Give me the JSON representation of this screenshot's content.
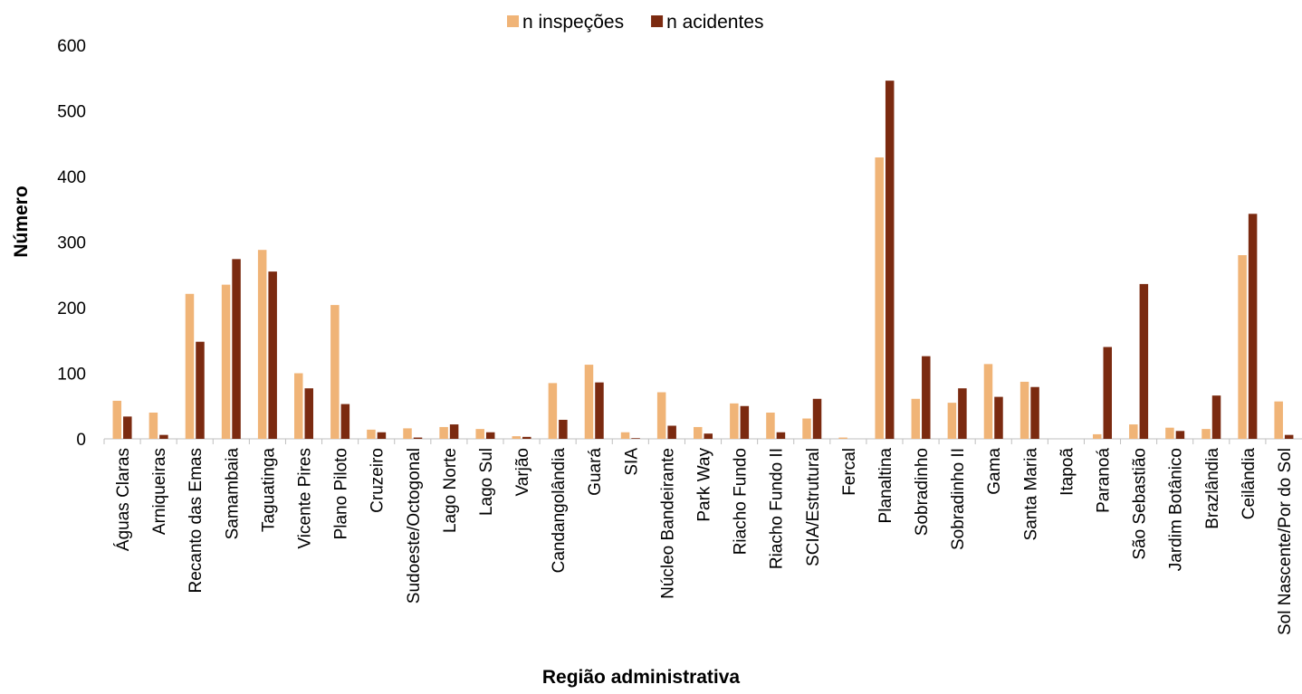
{
  "chart_data": {
    "type": "bar",
    "x_label": "Região administrativa",
    "y_label": "Número",
    "categories": [
      "Águas Claras",
      "Arniqueiras",
      "Recanto das Emas",
      "Samambaia",
      "Taguatinga",
      "Vicente Pires",
      "Plano Piloto",
      "Cruzeiro",
      "Sudoeste/Octogonal",
      "Lago Norte",
      "Lago Sul",
      "Varjão",
      "Candangolândia",
      "Guará",
      "SIA",
      "Núcleo Bandeirante",
      "Park Way",
      "Riacho Fundo",
      "Riacho Fundo II",
      "SCIA/Estrutural",
      "Fercal",
      "Planaltina",
      "Sobradinho",
      "Sobradinho II",
      "Gama",
      "Santa Maria",
      "Itapoã",
      "Paranoá",
      "São Sebastião",
      "Jardim Botânico",
      "Brazlândia",
      "Ceilândia",
      "Sol Nascente/Por do Sol"
    ],
    "series": [
      {
        "name": "n inspeções",
        "color": "#f0b477",
        "values": [
          58,
          40,
          221,
          235,
          288,
          100,
          204,
          14,
          16,
          18,
          15,
          4,
          85,
          113,
          10,
          71,
          18,
          54,
          40,
          31,
          2,
          429,
          61,
          55,
          114,
          87,
          0,
          7,
          22,
          17,
          15,
          280,
          57
        ]
      },
      {
        "name": "n acidentes",
        "color": "#7b2a10",
        "values": [
          34,
          6,
          148,
          274,
          255,
          77,
          53,
          10,
          2,
          22,
          10,
          3,
          29,
          86,
          1,
          20,
          8,
          50,
          10,
          61,
          0,
          546,
          126,
          77,
          64,
          79,
          0,
          140,
          236,
          12,
          66,
          343,
          6
        ]
      }
    ],
    "ylim": [
      0,
      600
    ],
    "yticks": [
      0,
      100,
      200,
      300,
      400,
      500,
      600
    ],
    "legend": "top"
  }
}
